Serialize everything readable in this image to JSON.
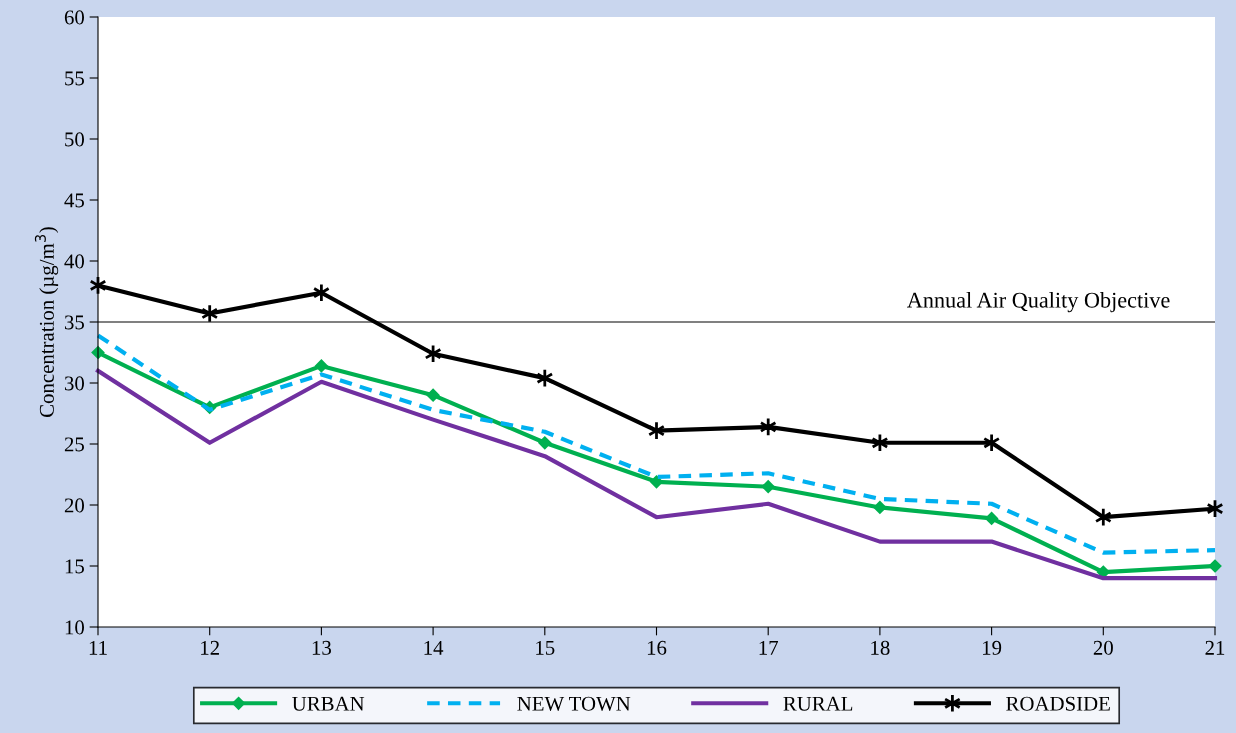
{
  "chart_data": {
    "type": "line",
    "ylabel": "Concentration (µg/m$^{3}$)",
    "x": [
      11,
      12,
      13,
      14,
      15,
      16,
      17,
      18,
      19,
      20,
      21
    ],
    "xlim": [
      11,
      21
    ],
    "xticks": [
      11,
      12,
      13,
      14,
      15,
      16,
      17,
      18,
      19,
      20,
      21
    ],
    "ylim": [
      10,
      60
    ],
    "yticks": [
      10,
      15,
      20,
      25,
      30,
      35,
      40,
      45,
      50,
      55,
      60
    ],
    "grid": false,
    "legend": "bottom",
    "series": [
      {
        "name": "URBAN",
        "color": "#00b050",
        "marker": "diamond",
        "line_style": "solid",
        "values": [
          32.5,
          28.0,
          31.4,
          29.0,
          25.1,
          21.9,
          21.5,
          19.8,
          18.9,
          14.5,
          15.0
        ]
      },
      {
        "name": "NEW TOWN",
        "color": "#00b0f0",
        "marker": "none",
        "line_style": "dashed",
        "values": [
          33.9,
          27.8,
          30.7,
          27.8,
          26.0,
          22.3,
          22.6,
          20.5,
          20.1,
          16.1,
          16.3
        ]
      },
      {
        "name": "RURAL",
        "color": "#7030a0",
        "marker": "none",
        "line_style": "solid",
        "values": [
          31.0,
          25.1,
          30.1,
          27.0,
          24.0,
          19.0,
          20.1,
          17.0,
          17.0,
          14.0,
          14.0
        ]
      },
      {
        "name": "ROADSIDE",
        "color": "#000000",
        "marker": "cross",
        "line_style": "solid",
        "values": [
          38.0,
          35.7,
          37.4,
          32.4,
          30.4,
          26.1,
          26.4,
          25.1,
          25.1,
          19.0,
          19.7
        ]
      }
    ],
    "ref_lines": [
      {
        "axis": "y",
        "value": 35,
        "label": "Annual Air Quality Objective",
        "color": "#808080",
        "line_style": "solid"
      }
    ]
  }
}
